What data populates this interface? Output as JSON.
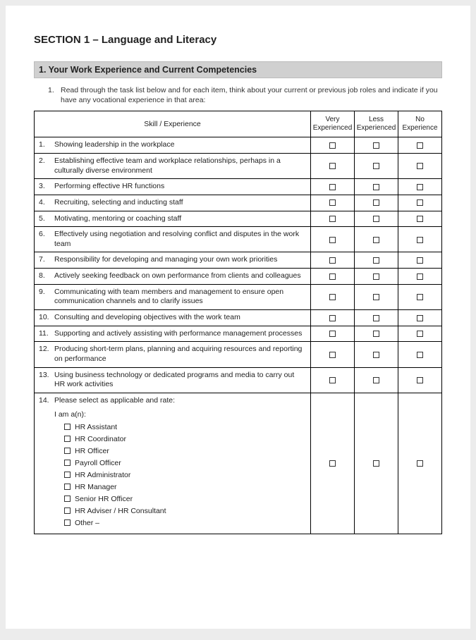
{
  "section": {
    "title": "SECTION 1 – Language and Literacy",
    "subsection": "1. Your Work Experience and Current Competencies",
    "instruction_num": "1.",
    "instruction": "Read through the task list below and for each item, think about your current or previous job roles and indicate if you have any vocational experience in that area:"
  },
  "table": {
    "headers": {
      "skill": "Skill / Experience",
      "very": "Very Experienced",
      "less": "Less Experienced",
      "no": "No Experience"
    },
    "rows": [
      {
        "n": "1.",
        "text": "Showing leadership in the workplace"
      },
      {
        "n": "2.",
        "text": "Establishing effective team and workplace relationships, perhaps in a culturally diverse environment"
      },
      {
        "n": "3.",
        "text": "Performing effective HR functions"
      },
      {
        "n": "4.",
        "text": "Recruiting, selecting and inducting staff"
      },
      {
        "n": "5.",
        "text": "Motivating, mentoring or coaching staff"
      },
      {
        "n": "6.",
        "text": "Effectively using negotiation and  resolving conflict and disputes in the work team"
      },
      {
        "n": "7.",
        "text": "Responsibility for developing and managing your own work priorities"
      },
      {
        "n": "8.",
        "text": "Actively seeking feedback on own performance from clients and colleagues"
      },
      {
        "n": "9.",
        "text": "Communicating with team members and management to ensure open communication channels and to clarify issues"
      },
      {
        "n": "10.",
        "text": "Consulting and developing objectives with the work team"
      },
      {
        "n": "11.",
        "text": "Supporting and actively assisting with performance management processes"
      },
      {
        "n": "12.",
        "text": "Producing short-term plans, planning and acquiring resources and reporting on performance"
      },
      {
        "n": "13.",
        "text": "Using business technology or dedicated programs and media to carry out HR work activities"
      }
    ],
    "row14": {
      "n": "14.",
      "lead": "Please select as applicable and rate:",
      "sub": "I am a(n):",
      "roles": [
        "HR Assistant",
        "HR Coordinator",
        "HR Officer",
        "Payroll Officer",
        "HR Administrator",
        "HR Manager",
        "Senior HR Officer",
        "HR Adviser / HR Consultant",
        "Other –"
      ]
    }
  },
  "colors": {
    "page_bg": "#ffffff",
    "body_bg": "#ececec",
    "bar_bg": "#d0d0d0",
    "border": "#000000",
    "text": "#222222"
  }
}
